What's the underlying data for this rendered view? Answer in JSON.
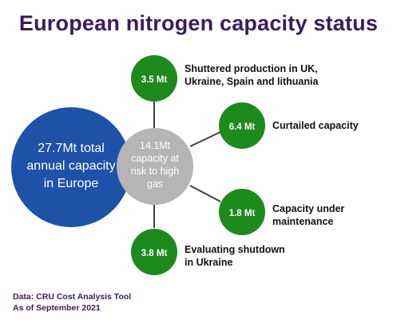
{
  "title": "European nitrogen capacity status",
  "colors": {
    "title": "#3a1c5c",
    "total_circle": "#1d52a8",
    "risk_circle": "#b5b5b5",
    "green_circle": "#1c8a1c",
    "connector": "#404040"
  },
  "total": {
    "line1": "27.7Mt total",
    "line2": "annual capacity",
    "line3": "in Europe"
  },
  "risk": {
    "line1": "14.1Mt",
    "line2": "capacity at",
    "line3": "risk to high",
    "line4": "gas"
  },
  "segments": [
    {
      "id": "shuttered",
      "value": "3.5 Mt",
      "label_line1": "Shuttered production in UK,",
      "label_line2": "Ukraine, Spain and lithuania"
    },
    {
      "id": "curtailed",
      "value": "6.4 Mt",
      "label_line1": "Curtailed capacity",
      "label_line2": ""
    },
    {
      "id": "maintenance",
      "value": "1.8 Mt",
      "label_line1": "Capacity under",
      "label_line2": "maintenance"
    },
    {
      "id": "shutdown",
      "value": "3.8 Mt",
      "label_line1": "Evaluating shutdown",
      "label_line2": "in Ukraine"
    }
  ],
  "source": {
    "line1": "Data: CRU Cost Analysis Tool",
    "line2": "As of September 2021"
  }
}
